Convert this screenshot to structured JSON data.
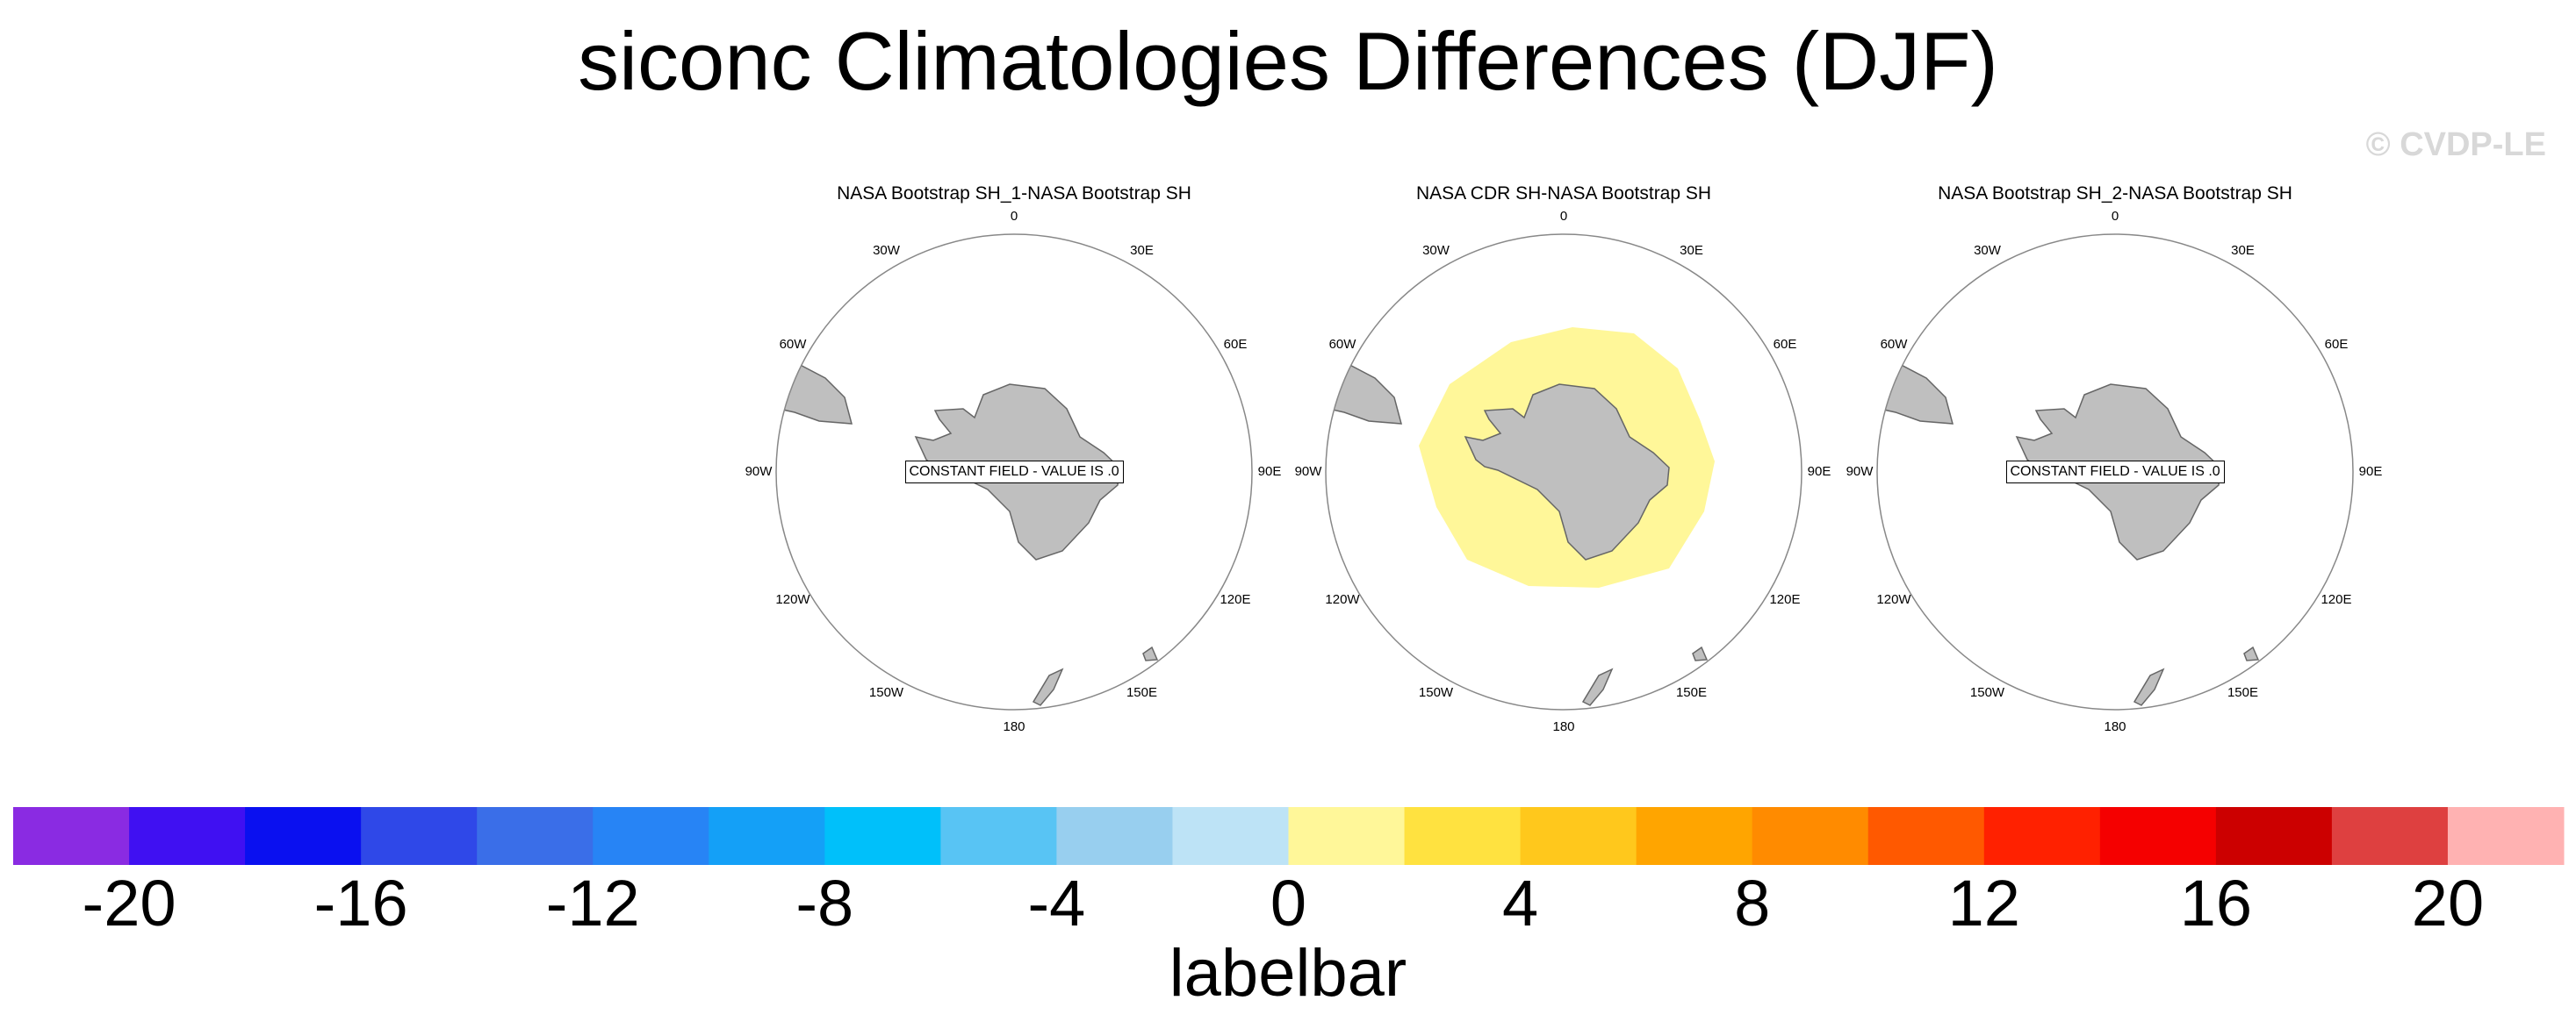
{
  "title": "siconc Climatologies Differences (DJF)",
  "watermark": "© CVDP-LE",
  "panels": [
    {
      "title": "NASA Bootstrap SH_1-NASA Bootstrap SH",
      "annotation": "CONSTANT FIELD - VALUE IS .0",
      "filled": false
    },
    {
      "title": "NASA CDR SH-NASA Bootstrap SH",
      "annotation": "",
      "filled": true,
      "fill_value_range": [
        0,
        2
      ]
    },
    {
      "title": "NASA Bootstrap SH_2-NASA Bootstrap SH",
      "annotation": "CONSTANT FIELD - VALUE IS .0",
      "filled": false
    }
  ],
  "longitude_labels": [
    "0",
    "30E",
    "60E",
    "90E",
    "120E",
    "150E",
    "180",
    "150W",
    "120W",
    "90W",
    "60W",
    "30W"
  ],
  "colors": {
    "land": "#bfbfbf",
    "land_outline": "#666666",
    "circle": "#888888",
    "watermark": "#d8d8d8"
  },
  "labelbar": {
    "title": "labelbar",
    "levels": [
      -20,
      -18,
      -16,
      -14,
      -12,
      -10,
      -8,
      -6,
      -4,
      -2,
      0,
      2,
      4,
      6,
      8,
      10,
      12,
      14,
      16,
      18,
      20
    ],
    "tick_labels": [
      "-20",
      "-16",
      "-12",
      "-8",
      "-4",
      "0",
      "4",
      "8",
      "12",
      "16",
      "20"
    ],
    "colors": [
      "#8a2be2",
      "#4010f2",
      "#0a10f0",
      "#2f48e8",
      "#3a6ee8",
      "#2784f5",
      "#14a0f7",
      "#00c0fa",
      "#58c4f4",
      "#98cfef",
      "#bde3f6",
      "#fff799",
      "#ffe240",
      "#ffc81c",
      "#ffa500",
      "#ff8b00",
      "#ff5900",
      "#ff2100",
      "#f50000",
      "#cc0000",
      "#de4040",
      "#ffb2b2"
    ]
  }
}
